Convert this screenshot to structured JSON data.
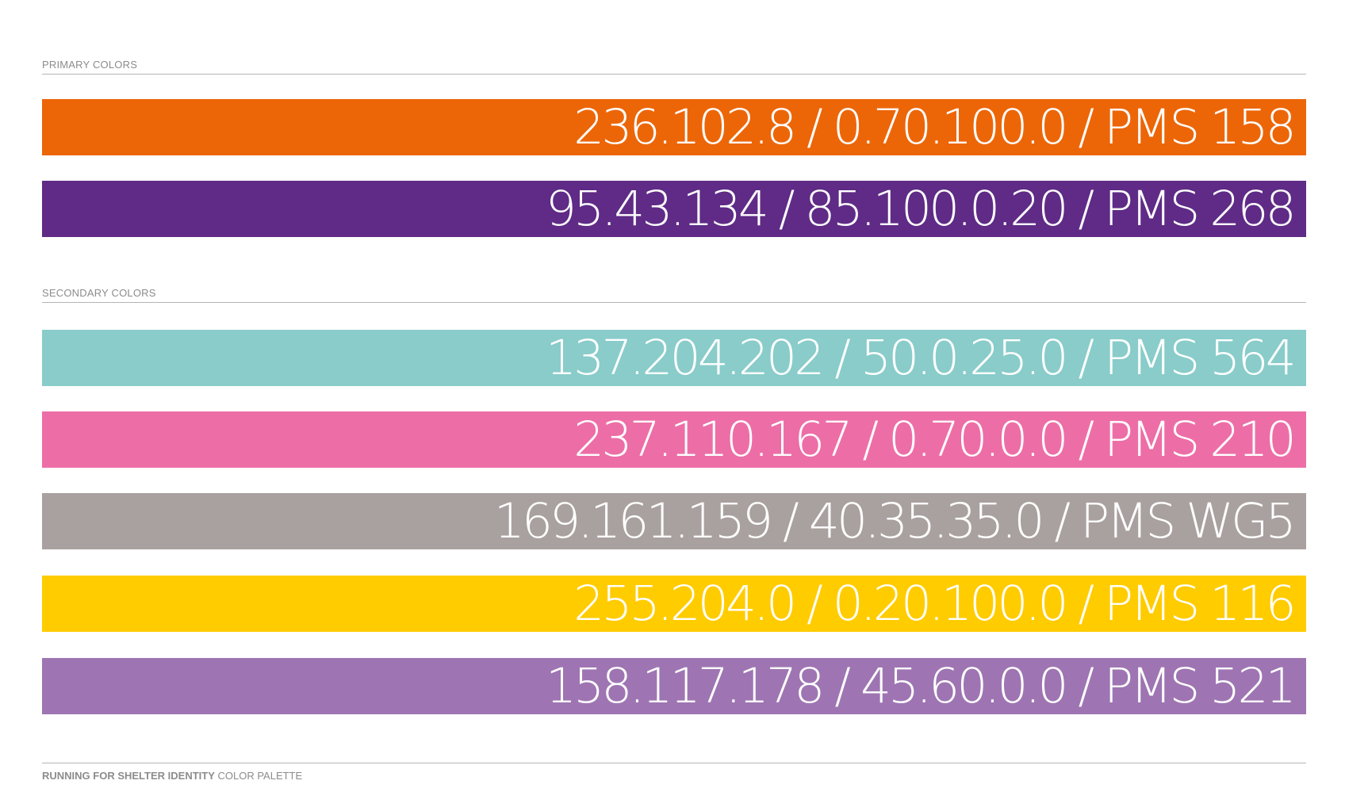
{
  "primary": {
    "label": "PRIMARY COLORS",
    "swatches": [
      {
        "text": "236.102.8 / 0.70.100.0 / PMS 158",
        "color": "#EC6608"
      },
      {
        "text": "95.43.134 / 85.100.0.20 / PMS 268",
        "color": "#5F2B86"
      }
    ]
  },
  "secondary": {
    "label": "SECONDARY COLORS",
    "swatches": [
      {
        "text": "137.204.202 / 50.0.25.0 / PMS 564",
        "color": "#89CCCA"
      },
      {
        "text": "237.110.167 / 0.70.0.0 / PMS 210",
        "color": "#ED6EA7"
      },
      {
        "text": "169.161.159 / 40.35.35.0 / PMS WG5",
        "color": "#A9A19F"
      },
      {
        "text": "255.204.0 / 0.20.100.0 / PMS 116",
        "color": "#FFCC00"
      },
      {
        "text": "158.117.178 / 45.60.0.0 / PMS 521",
        "color": "#9E75B2"
      }
    ]
  },
  "footer": {
    "title": "RUNNING FOR SHELTER IDENTITY",
    "subtitle": "COLOR PALETTE"
  }
}
